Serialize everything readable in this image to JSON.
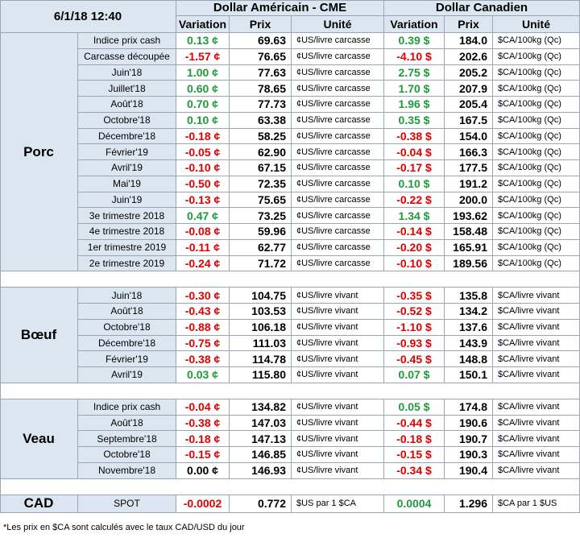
{
  "date": "6/1/18 12:40",
  "headers": {
    "usd_title": "Dollar Américain - CME",
    "cad_title": "Dollar Canadien",
    "variation": "Variation",
    "prix": "Prix",
    "unite": "Unité"
  },
  "groups": [
    {
      "name": "Porc",
      "rows": [
        {
          "label": "Indice prix cash",
          "usd_var": "0.13 ¢",
          "usd_prix": "69.63",
          "usd_unit": "¢US/livre carcasse",
          "cad_var": "0.39 $",
          "cad_prix": "184.0",
          "cad_unit": "$CA/100kg (Qc)"
        },
        {
          "label": "Carcasse découpée",
          "usd_var": "-1.57 ¢",
          "usd_prix": "76.65",
          "usd_unit": "¢US/livre carcasse",
          "cad_var": "-4.10 $",
          "cad_prix": "202.6",
          "cad_unit": "$CA/100kg (Qc)"
        },
        {
          "label": "Juin'18",
          "usd_var": "1.00 ¢",
          "usd_prix": "77.63",
          "usd_unit": "¢US/livre carcasse",
          "cad_var": "2.75 $",
          "cad_prix": "205.2",
          "cad_unit": "$CA/100kg (Qc)"
        },
        {
          "label": "Juillet'18",
          "usd_var": "0.60 ¢",
          "usd_prix": "78.65",
          "usd_unit": "¢US/livre carcasse",
          "cad_var": "1.70 $",
          "cad_prix": "207.9",
          "cad_unit": "$CA/100kg (Qc)"
        },
        {
          "label": "Août'18",
          "usd_var": "0.70 ¢",
          "usd_prix": "77.73",
          "usd_unit": "¢US/livre carcasse",
          "cad_var": "1.96 $",
          "cad_prix": "205.4",
          "cad_unit": "$CA/100kg (Qc)"
        },
        {
          "label": "Octobre'18",
          "usd_var": "0.10 ¢",
          "usd_prix": "63.38",
          "usd_unit": "¢US/livre carcasse",
          "cad_var": "0.35 $",
          "cad_prix": "167.5",
          "cad_unit": "$CA/100kg (Qc)"
        },
        {
          "label": "Décembre'18",
          "usd_var": "-0.18 ¢",
          "usd_prix": "58.25",
          "usd_unit": "¢US/livre carcasse",
          "cad_var": "-0.38 $",
          "cad_prix": "154.0",
          "cad_unit": "$CA/100kg (Qc)"
        },
        {
          "label": "Février'19",
          "usd_var": "-0.05 ¢",
          "usd_prix": "62.90",
          "usd_unit": "¢US/livre carcasse",
          "cad_var": "-0.04 $",
          "cad_prix": "166.3",
          "cad_unit": "$CA/100kg (Qc)"
        },
        {
          "label": "Avril'19",
          "usd_var": "-0.10 ¢",
          "usd_prix": "67.15",
          "usd_unit": "¢US/livre carcasse",
          "cad_var": "-0.17 $",
          "cad_prix": "177.5",
          "cad_unit": "$CA/100kg (Qc)"
        },
        {
          "label": "Mai'19",
          "usd_var": "-0.50 ¢",
          "usd_prix": "72.35",
          "usd_unit": "¢US/livre carcasse",
          "cad_var": "0.10 $",
          "cad_prix": "191.2",
          "cad_unit": "$CA/100kg (Qc)"
        },
        {
          "label": "Juin'19",
          "usd_var": "-0.13 ¢",
          "usd_prix": "75.65",
          "usd_unit": "¢US/livre carcasse",
          "cad_var": "-0.22 $",
          "cad_prix": "200.0",
          "cad_unit": "$CA/100kg (Qc)"
        },
        {
          "label": "3e trimestre 2018",
          "usd_var": "0.47 ¢",
          "usd_prix": "73.25",
          "usd_unit": "¢US/livre carcasse",
          "cad_var": "1.34 $",
          "cad_prix": "193.62",
          "cad_unit": "$CA/100kg (Qc)"
        },
        {
          "label": "4e trimestre 2018",
          "usd_var": "-0.08 ¢",
          "usd_prix": "59.96",
          "usd_unit": "¢US/livre carcasse",
          "cad_var": "-0.14 $",
          "cad_prix": "158.48",
          "cad_unit": "$CA/100kg (Qc)"
        },
        {
          "label": "1er trimestre 2019",
          "usd_var": "-0.11 ¢",
          "usd_prix": "62.77",
          "usd_unit": "¢US/livre carcasse",
          "cad_var": "-0.20 $",
          "cad_prix": "165.91",
          "cad_unit": "$CA/100kg (Qc)"
        },
        {
          "label": "2e trimestre 2019",
          "usd_var": "-0.24 ¢",
          "usd_prix": "71.72",
          "usd_unit": "¢US/livre carcasse",
          "cad_var": "-0.10 $",
          "cad_prix": "189.56",
          "cad_unit": "$CA/100kg (Qc)"
        }
      ]
    },
    {
      "name": "Bœuf",
      "rows": [
        {
          "label": "Juin'18",
          "usd_var": "-0.30 ¢",
          "usd_prix": "104.75",
          "usd_unit": "¢US/livre vivant",
          "cad_var": "-0.35 $",
          "cad_prix": "135.8",
          "cad_unit": "$CA/livre vivant"
        },
        {
          "label": "Août'18",
          "usd_var": "-0.43 ¢",
          "usd_prix": "103.53",
          "usd_unit": "¢US/livre vivant",
          "cad_var": "-0.52 $",
          "cad_prix": "134.2",
          "cad_unit": "$CA/livre vivant"
        },
        {
          "label": "Octobre'18",
          "usd_var": "-0.88 ¢",
          "usd_prix": "106.18",
          "usd_unit": "¢US/livre vivant",
          "cad_var": "-1.10 $",
          "cad_prix": "137.6",
          "cad_unit": "$CA/livre vivant"
        },
        {
          "label": "Décembre'18",
          "usd_var": "-0.75 ¢",
          "usd_prix": "111.03",
          "usd_unit": "¢US/livre vivant",
          "cad_var": "-0.93 $",
          "cad_prix": "143.9",
          "cad_unit": "$CA/livre vivant"
        },
        {
          "label": "Février'19",
          "usd_var": "-0.38 ¢",
          "usd_prix": "114.78",
          "usd_unit": "¢US/livre vivant",
          "cad_var": "-0.45 $",
          "cad_prix": "148.8",
          "cad_unit": "$CA/livre vivant"
        },
        {
          "label": "Avril'19",
          "usd_var": "0.03 ¢",
          "usd_prix": "115.80",
          "usd_unit": "¢US/livre vivant",
          "cad_var": "0.07 $",
          "cad_prix": "150.1",
          "cad_unit": "$CA/livre vivant"
        }
      ]
    },
    {
      "name": "Veau",
      "rows": [
        {
          "label": "Indice prix cash",
          "usd_var": "-0.04 ¢",
          "usd_prix": "134.82",
          "usd_unit": "¢US/livre vivant",
          "cad_var": "0.05 $",
          "cad_prix": "174.8",
          "cad_unit": "$CA/livre vivant"
        },
        {
          "label": "Août'18",
          "usd_var": "-0.38 ¢",
          "usd_prix": "147.03",
          "usd_unit": "¢US/livre vivant",
          "cad_var": "-0.44 $",
          "cad_prix": "190.6",
          "cad_unit": "$CA/livre vivant"
        },
        {
          "label": "Septembre'18",
          "usd_var": "-0.18 ¢",
          "usd_prix": "147.13",
          "usd_unit": "¢US/livre vivant",
          "cad_var": "-0.18 $",
          "cad_prix": "190.7",
          "cad_unit": "$CA/livre vivant"
        },
        {
          "label": "Octobre'18",
          "usd_var": "-0.15 ¢",
          "usd_prix": "146.85",
          "usd_unit": "¢US/livre vivant",
          "cad_var": "-0.15 $",
          "cad_prix": "190.3",
          "cad_unit": "$CA/livre vivant"
        },
        {
          "label": "Novembre'18",
          "usd_var": "0.00 ¢",
          "usd_prix": "146.93",
          "usd_unit": "¢US/livre vivant",
          "cad_var": "-0.34 $",
          "cad_prix": "190.4",
          "cad_unit": "$CA/livre vivant"
        }
      ]
    }
  ],
  "cad_row": {
    "name": "CAD",
    "label": "SPOT",
    "usd_var": "-0.0002",
    "usd_prix": "0.772",
    "usd_unit": "$US par 1 $CA",
    "cad_var": "0.0004",
    "cad_prix": "1.296",
    "cad_unit": "$CA par 1 $US"
  },
  "footnote": "*Les prix en $CA sont calculés avec le taux CAD/USD du jour",
  "colors": {
    "header_bg": "#dce6f1",
    "positive": "#1f9a3a",
    "negative": "#e00000",
    "border": "#9aa6b4"
  }
}
